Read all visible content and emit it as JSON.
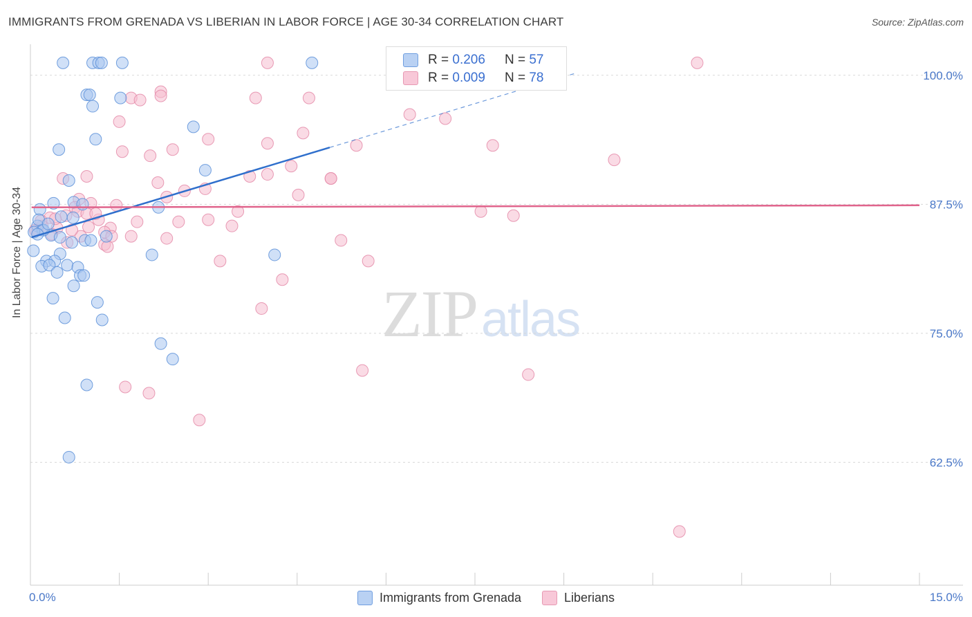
{
  "title": "IMMIGRANTS FROM GRENADA VS LIBERIAN IN LABOR FORCE | AGE 30-34 CORRELATION CHART",
  "source": "Source: ZipAtlas.com",
  "watermark": {
    "zip": "ZIP",
    "atlas": "atlas"
  },
  "legend_top": {
    "rows": [
      {
        "r_label": "R =",
        "r_value": "0.206",
        "n_label": "N =",
        "n_value": "57"
      },
      {
        "r_label": "R =",
        "r_value": "0.009",
        "n_label": "N =",
        "n_value": "78"
      }
    ]
  },
  "colors": {
    "grenada_fill": "#a9c6f0",
    "grenada_stroke": "#5b8fd8",
    "grenada_line": "#2f6fcc",
    "liberian_fill": "#f6bed0",
    "liberian_stroke": "#e48aa8",
    "liberian_line": "#e0648c",
    "grid": "#d8d8d8",
    "tick_label": "#4a78c8"
  },
  "chart_data": {
    "type": "scatter",
    "title": "IMMIGRANTS FROM GRENADA VS LIBERIAN IN LABOR FORCE | AGE 30-34 CORRELATION CHART",
    "xlabel": "",
    "ylabel": "In Labor Force | Age 30-34",
    "xlim": [
      0,
      15
    ],
    "ylim": [
      50.6,
      103
    ],
    "x_tick_labels": [
      "0.0%",
      "15.0%"
    ],
    "y_ticks": [
      62.5,
      75.0,
      87.5,
      100.0
    ],
    "y_tick_labels": [
      "62.5%",
      "75.0%",
      "87.5%",
      "100.0%"
    ],
    "legend": [
      "Immigrants from Grenada",
      "Liberians"
    ],
    "series": [
      {
        "name": "Immigrants from Grenada",
        "r": 0.206,
        "n": 57,
        "trend": {
          "x0": 0.02,
          "y0": 84.3,
          "x1": 5.05,
          "y1": 93.0,
          "dash_x1": 9.2,
          "dash_y1": 100.2
        },
        "points": [
          [
            0.55,
            101.2
          ],
          [
            1.05,
            101.2
          ],
          [
            1.15,
            101.2
          ],
          [
            1.2,
            101.2
          ],
          [
            1.55,
            101.2
          ],
          [
            4.75,
            101.2
          ],
          [
            0.95,
            98.1
          ],
          [
            1.0,
            98.1
          ],
          [
            1.52,
            97.8
          ],
          [
            1.05,
            97.0
          ],
          [
            2.75,
            95.0
          ],
          [
            1.1,
            93.8
          ],
          [
            0.48,
            92.8
          ],
          [
            2.95,
            90.8
          ],
          [
            0.65,
            89.8
          ],
          [
            0.73,
            87.7
          ],
          [
            0.88,
            87.5
          ],
          [
            0.16,
            87.0
          ],
          [
            0.39,
            87.6
          ],
          [
            0.72,
            86.2
          ],
          [
            0.52,
            86.3
          ],
          [
            2.16,
            87.2
          ],
          [
            0.12,
            85.4
          ],
          [
            0.2,
            85.0
          ],
          [
            0.35,
            84.5
          ],
          [
            0.22,
            85.0
          ],
          [
            0.06,
            84.8
          ],
          [
            0.5,
            84.3
          ],
          [
            0.12,
            84.6
          ],
          [
            0.7,
            83.8
          ],
          [
            0.92,
            84.0
          ],
          [
            1.28,
            84.4
          ],
          [
            0.05,
            83.0
          ],
          [
            0.5,
            82.7
          ],
          [
            2.05,
            82.6
          ],
          [
            4.12,
            82.6
          ],
          [
            0.27,
            82.0
          ],
          [
            0.41,
            82.0
          ],
          [
            0.62,
            81.6
          ],
          [
            0.19,
            81.5
          ],
          [
            0.32,
            81.6
          ],
          [
            0.8,
            81.4
          ],
          [
            0.45,
            80.9
          ],
          [
            0.84,
            80.6
          ],
          [
            0.9,
            80.6
          ],
          [
            0.73,
            79.6
          ],
          [
            0.38,
            78.4
          ],
          [
            1.13,
            78.0
          ],
          [
            0.58,
            76.5
          ],
          [
            1.21,
            76.3
          ],
          [
            2.2,
            74.0
          ],
          [
            2.4,
            72.5
          ],
          [
            0.95,
            70.0
          ],
          [
            0.65,
            63.0
          ],
          [
            0.14,
            86.0
          ],
          [
            0.3,
            85.6
          ],
          [
            1.02,
            84.0
          ]
        ]
      },
      {
        "name": "Liberians",
        "r": 0.009,
        "n": 78,
        "trend": {
          "x0": 0.02,
          "y0": 87.2,
          "x1": 15.0,
          "y1": 87.4
        },
        "points": [
          [
            4.0,
            101.2
          ],
          [
            11.25,
            101.2
          ],
          [
            2.2,
            98.4
          ],
          [
            2.2,
            98.0
          ],
          [
            1.7,
            97.8
          ],
          [
            1.85,
            97.6
          ],
          [
            3.8,
            97.8
          ],
          [
            4.7,
            97.8
          ],
          [
            6.4,
            96.2
          ],
          [
            7.0,
            95.8
          ],
          [
            1.5,
            95.5
          ],
          [
            4.6,
            94.4
          ],
          [
            3.0,
            93.8
          ],
          [
            4.0,
            93.4
          ],
          [
            5.5,
            93.2
          ],
          [
            7.8,
            93.2
          ],
          [
            1.55,
            92.6
          ],
          [
            2.4,
            92.8
          ],
          [
            2.02,
            92.2
          ],
          [
            9.85,
            91.8
          ],
          [
            4.4,
            91.2
          ],
          [
            0.55,
            90.0
          ],
          [
            0.95,
            90.2
          ],
          [
            2.15,
            89.6
          ],
          [
            3.7,
            90.2
          ],
          [
            4.0,
            90.4
          ],
          [
            5.07,
            90.0
          ],
          [
            5.07,
            90.0
          ],
          [
            2.6,
            88.8
          ],
          [
            2.95,
            89.0
          ],
          [
            4.52,
            88.4
          ],
          [
            2.3,
            88.2
          ],
          [
            0.82,
            88.0
          ],
          [
            1.02,
            87.6
          ],
          [
            1.45,
            87.4
          ],
          [
            0.75,
            87.2
          ],
          [
            0.8,
            86.8
          ],
          [
            0.95,
            86.6
          ],
          [
            3.5,
            86.8
          ],
          [
            7.6,
            86.8
          ],
          [
            8.15,
            86.4
          ],
          [
            0.6,
            86.4
          ],
          [
            3.0,
            86.0
          ],
          [
            1.15,
            86.0
          ],
          [
            0.33,
            86.2
          ],
          [
            1.8,
            85.8
          ],
          [
            2.5,
            85.8
          ],
          [
            0.2,
            85.4
          ],
          [
            0.45,
            85.2
          ],
          [
            0.12,
            85.0
          ],
          [
            0.98,
            85.3
          ],
          [
            1.35,
            85.2
          ],
          [
            3.4,
            85.4
          ],
          [
            1.25,
            84.8
          ],
          [
            0.36,
            84.6
          ],
          [
            0.85,
            84.4
          ],
          [
            2.3,
            84.2
          ],
          [
            1.37,
            84.4
          ],
          [
            1.7,
            84.4
          ],
          [
            5.24,
            84.0
          ],
          [
            0.62,
            83.8
          ],
          [
            1.25,
            83.6
          ],
          [
            1.3,
            83.4
          ],
          [
            3.2,
            82.0
          ],
          [
            5.7,
            82.0
          ],
          [
            4.25,
            80.2
          ],
          [
            3.9,
            77.4
          ],
          [
            5.6,
            71.4
          ],
          [
            8.4,
            71.0
          ],
          [
            1.6,
            69.8
          ],
          [
            2.0,
            69.2
          ],
          [
            2.85,
            66.6
          ],
          [
            10.95,
            55.8
          ],
          [
            0.08,
            85.0
          ],
          [
            0.42,
            86.1
          ],
          [
            0.18,
            85.9
          ],
          [
            1.1,
            86.6
          ],
          [
            0.7,
            85.0
          ]
        ]
      }
    ]
  }
}
